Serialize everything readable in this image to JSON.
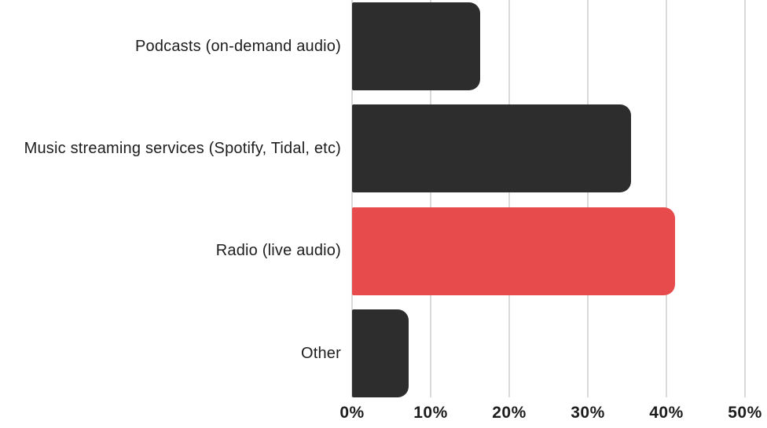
{
  "chart_data": {
    "type": "bar",
    "orientation": "horizontal",
    "title": "",
    "categories": [
      "Podcasts (on-demand audio)",
      "Music streaming services (Spotify, Tidal, etc)",
      "Radio (live audio)",
      "Other"
    ],
    "values": [
      16.3,
      35.5,
      41.1,
      7.2
    ],
    "unit": "%",
    "xlim": [
      0,
      50
    ],
    "x_ticks": [
      0,
      10,
      20,
      30,
      40,
      50
    ],
    "x_tick_labels": [
      "0%",
      "10%",
      "20%",
      "30%",
      "40%",
      "50%"
    ],
    "grid": "vertical-gridlines-on",
    "legend": "none",
    "highlighted_category": "Radio (live audio)",
    "bar_colors": [
      "#2d2d2d",
      "#2d2d2d",
      "#e84b4b",
      "#2d2d2d"
    ],
    "colors": {
      "bar_default": "#2d2d2d",
      "bar_highlight": "#e84b4b",
      "gridline": "#d9d9d9",
      "text": "#1d1d1d",
      "background": "#ffffff"
    }
  }
}
